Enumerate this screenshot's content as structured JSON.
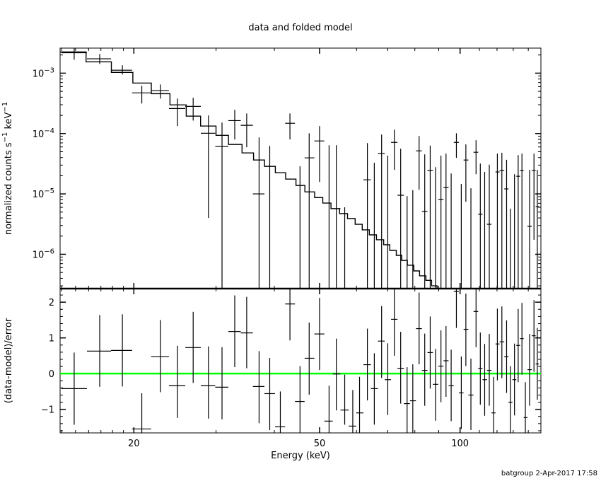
{
  "chart_data": {
    "type": "line",
    "title": "data and folded model",
    "xlabel": "Energy (keV)",
    "xscale": "log",
    "xlim": [
      13.9,
      149
    ],
    "xticks_major": [
      20,
      50,
      100
    ],
    "xtick_labels": [
      "20",
      "50",
      "100"
    ],
    "xticks_minor": [
      14,
      15,
      16,
      17,
      18,
      19,
      30,
      40,
      60,
      70,
      80,
      90,
      110,
      120,
      130,
      140
    ],
    "footer": "batgroup  2-Apr-2017 17:58",
    "colors": {
      "data": "#000000",
      "model": "#000000",
      "zero_line": "#00ff00"
    },
    "top_panel": {
      "ylabel": "normalized counts s",
      "ylabel_sup1": "−1",
      "ylabel_mid": " keV",
      "ylabel_sup2": "−1",
      "yscale": "log",
      "ylim": [
        2.7e-07,
        0.0026
      ],
      "yticks": [
        {
          "value": 0.001,
          "base": "10",
          "exp": "−3"
        },
        {
          "value": 0.0001,
          "base": "10",
          "exp": "−4"
        },
        {
          "value": 1e-05,
          "base": "10",
          "exp": "−5"
        },
        {
          "value": 1e-06,
          "base": "10",
          "exp": "−6"
        }
      ],
      "data_series": {
        "name": "data",
        "columns": [
          "energy_keV",
          "value",
          "err_low",
          "err_high"
        ],
        "points": [
          [
            14.9,
            0.00218,
            0.00167,
            0.00264
          ],
          [
            16.9,
            0.00173,
            0.00142,
            0.00207
          ],
          [
            18.9,
            0.00112,
            0.00095,
            0.00135
          ],
          [
            20.8,
            0.000471,
            0.000314,
            0.000616
          ],
          [
            22.8,
            0.000514,
            0.000379,
            0.00065
          ],
          [
            24.8,
            0.00026,
            0.000133,
            0.000379
          ],
          [
            26.8,
            0.000282,
            0.000164,
            0.00039
          ],
          [
            28.9,
            0.000101,
            4e-06,
            0.000199
          ],
          [
            30.9,
            6.08e-05,
            0,
            0.000152
          ],
          [
            32.9,
            0.000164,
            7.96e-05,
            0.000247
          ],
          [
            34.9,
            0.000137,
            5.92e-05,
            0.000215
          ],
          [
            37.1,
            1e-05,
            0,
            8.63e-05
          ],
          [
            39.1,
            0,
            0,
            6.24e-05
          ],
          [
            41.2,
            0,
            0,
            0
          ],
          [
            43.2,
            0.000148,
            7.96e-05,
            0.000215
          ],
          [
            45.4,
            0,
            0,
            2.86e-05
          ],
          [
            47.5,
            3.95e-05,
            0,
            0.000101
          ],
          [
            50.0,
            7.53e-05,
            1.58e-05,
            0.000133
          ],
          [
            52.4,
            0,
            0,
            6.41e-05
          ],
          [
            54.3,
            5.7e-06,
            0,
            6.41e-05
          ],
          [
            56.6,
            0,
            0,
            6e-06
          ],
          [
            58.9,
            0,
            0,
            0
          ],
          [
            60.9,
            0,
            0,
            0
          ],
          [
            63.3,
            1.71e-05,
            0,
            6.95e-05
          ],
          [
            65.5,
            0,
            0,
            3.27e-05
          ],
          [
            67.9,
            4.65e-05,
            0,
            9.6e-05
          ],
          [
            70.0,
            0,
            0,
            4.3e-05
          ],
          [
            72.3,
            7.14e-05,
            2.5e-05,
            0.000116
          ],
          [
            74.6,
            9.5e-06,
            0,
            5.6e-05
          ],
          [
            77.0,
            0,
            0,
            9.2e-06
          ],
          [
            79.2,
            0,
            0,
            1.15e-05
          ],
          [
            81.7,
            5.16e-05,
            1.17e-05,
            9.1e-05
          ],
          [
            84.0,
            5.1e-06,
            0,
            4.52e-05
          ],
          [
            86.3,
            2.43e-05,
            0,
            6.3e-05
          ],
          [
            88.6,
            0,
            0,
            2.78e-05
          ],
          [
            91.0,
            8.05e-06,
            0,
            4.3e-05
          ],
          [
            93.3,
            1.27e-05,
            0,
            4.65e-05
          ],
          [
            95.7,
            0,
            0,
            2.18e-05
          ],
          [
            98.2,
            7.14e-05,
            3.95e-05,
            0.000101
          ],
          [
            100.6,
            0,
            0,
            1.46e-05
          ],
          [
            102.9,
            3.64e-05,
            7.4e-06,
            6.6e-05
          ],
          [
            105.5,
            0,
            0,
            1.24e-05
          ],
          [
            108.2,
            4.9e-05,
            2.12e-05,
            7.75e-05
          ],
          [
            110.5,
            4.6e-06,
            0,
            3.18e-05
          ],
          [
            112.9,
            0,
            0,
            2.31e-05
          ],
          [
            115.5,
            3.14e-06,
            0,
            3.05e-05
          ],
          [
            118.0,
            0,
            0,
            0
          ],
          [
            120.2,
            2.31e-05,
            0,
            4.65e-05
          ],
          [
            122.9,
            2.43e-05,
            0,
            4.8e-05
          ],
          [
            125.8,
            1.21e-05,
            0,
            3.67e-05
          ],
          [
            128.2,
            0,
            0,
            5.7e-06
          ],
          [
            130.8,
            0,
            0,
            2.12e-05
          ],
          [
            133.2,
            1.96e-05,
            0,
            4.4e-05
          ],
          [
            135.7,
            2.43e-05,
            0,
            4.65e-05
          ],
          [
            138.0,
            0,
            0,
            0
          ],
          [
            140.9,
            2.9e-06,
            0,
            2.5e-05
          ],
          [
            144.0,
            2.43e-05,
            1.74e-06,
            4.65e-05
          ],
          [
            146.4,
            6.15e-06,
            0,
            2.5e-05
          ]
        ]
      },
      "model_series": {
        "name": "folded model",
        "bin_edges": [
          13.9,
          15.8,
          17.9,
          19.9,
          21.8,
          23.9,
          25.9,
          27.8,
          30.0,
          31.9,
          34.1,
          36.1,
          38.1,
          40.2,
          42.3,
          44.5,
          46.5,
          48.8,
          50.8,
          52.9,
          55.2,
          57.4,
          59.6,
          61.7,
          63.9,
          66.2,
          68.6,
          70.7,
          73.0,
          75.0,
          77.1,
          79.6,
          81.9,
          84.5,
          86.9,
          89.3
        ],
        "values": [
          0.00224,
          0.00154,
          0.00103,
          0.000686,
          0.000458,
          0.000298,
          0.000194,
          0.000133,
          9.35e-05,
          6.6e-05,
          4.77e-05,
          3.64e-05,
          2.86e-05,
          2.24e-05,
          1.76e-05,
          1.38e-05,
          1.08e-05,
          8.7e-06,
          7.05e-06,
          5.7e-06,
          4.71e-06,
          3.9e-06,
          3.14e-06,
          2.54e-06,
          2.1e-06,
          1.74e-06,
          1.44e-06,
          1.16e-06,
          9.6e-07,
          7.9e-07,
          6.6e-07,
          5.3e-07,
          4.4e-07,
          3.7e-07,
          3e-07
        ]
      }
    },
    "bottom_panel": {
      "ylabel": "(data-model)/error",
      "ylim": [
        -1.66,
        2.38
      ],
      "yticks": [
        -1,
        0,
        1,
        2
      ],
      "ytick_labels": [
        "−1",
        "0",
        "1",
        "2"
      ],
      "zero_line": 0,
      "residuals": {
        "columns": [
          "value",
          "err_low",
          "err_high"
        ],
        "points": [
          [
            -0.42,
            -1.43,
            0.59
          ],
          [
            0.63,
            -0.37,
            1.64
          ],
          [
            0.65,
            -0.36,
            1.66
          ],
          [
            -1.55,
            -2.5,
            -0.55
          ],
          [
            0.47,
            -0.52,
            1.5
          ],
          [
            -0.34,
            -1.24,
            0.78
          ],
          [
            0.73,
            -0.26,
            1.73
          ],
          [
            -0.34,
            -1.26,
            0.76
          ],
          [
            -0.38,
            -1.28,
            0.74
          ],
          [
            1.18,
            0.18,
            2.19
          ],
          [
            1.14,
            0.15,
            2.15
          ],
          [
            -0.36,
            -1.39,
            0.63
          ],
          [
            -0.56,
            -1.58,
            0.44
          ],
          [
            -1.49,
            -2.5,
            -0.5
          ],
          [
            1.95,
            0.93,
            2.95
          ],
          [
            -0.78,
            -1.8,
            0.21
          ],
          [
            0.43,
            -0.59,
            1.43
          ],
          [
            1.11,
            0.1,
            2.12
          ],
          [
            -1.33,
            -2.3,
            -0.34
          ],
          [
            -0.01,
            -1.03,
            0.98
          ],
          [
            -1.02,
            -1.43,
            -0.03
          ],
          [
            -1.47,
            -2.5,
            -0.46
          ],
          [
            -1.1,
            -2.1,
            -0.09
          ],
          [
            0.25,
            -0.75,
            1.26
          ],
          [
            -0.42,
            -1.43,
            0.57
          ],
          [
            0.91,
            -0.12,
            1.89
          ],
          [
            -0.17,
            -1.16,
            0.85
          ],
          [
            1.52,
            0.5,
            2.36
          ],
          [
            0.15,
            -0.84,
            1.17
          ],
          [
            -0.84,
            -1.84,
            0.18
          ],
          [
            -0.76,
            -1.76,
            0.26
          ],
          [
            1.26,
            0.26,
            2.27
          ],
          [
            0.09,
            -0.9,
            1.12
          ],
          [
            0.59,
            -0.42,
            1.6
          ],
          [
            -0.3,
            -1.32,
            0.69
          ],
          [
            0.21,
            -0.8,
            1.21
          ],
          [
            0.36,
            -0.65,
            1.33
          ],
          [
            -0.34,
            -1.33,
            0.67
          ],
          [
            2.3,
            1.28,
            3.3
          ],
          [
            -0.54,
            -1.55,
            0.48
          ],
          [
            1.24,
            0.21,
            2.24
          ],
          [
            -0.6,
            -1.58,
            0.42
          ],
          [
            1.74,
            0.74,
            2.74
          ],
          [
            0.15,
            -0.87,
            1.15
          ],
          [
            -0.17,
            -1.18,
            0.83
          ],
          [
            0.09,
            -0.9,
            1.11
          ],
          [
            -1.1,
            -2.1,
            -0.09
          ],
          [
            0.83,
            -0.19,
            1.82
          ],
          [
            0.89,
            -0.13,
            1.88
          ],
          [
            0.47,
            -0.54,
            1.49
          ],
          [
            -0.8,
            -1.8,
            0.21
          ],
          [
            -0.17,
            -1.17,
            0.84
          ],
          [
            0.79,
            -0.24,
            1.81
          ],
          [
            0.98,
            -0.03,
            1.98
          ],
          [
            -1.23,
            -2.2,
            -0.24
          ],
          [
            0.11,
            -0.9,
            1.11
          ],
          [
            1.06,
            0.05,
            2.06
          ],
          [
            0.27,
            -0.73,
            1.28
          ]
        ]
      }
    }
  }
}
